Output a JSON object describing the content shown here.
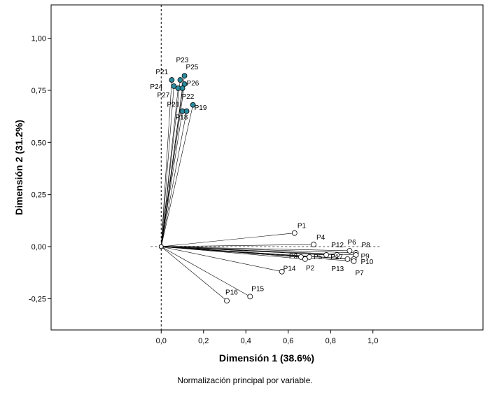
{
  "chart_data": {
    "type": "scatter",
    "title": "",
    "xlabel": "Dimensión 1  (38.6%)",
    "ylabel": "Dimensión 2  (31.2%)",
    "footnote": "Normalización principal por variable.",
    "xlim": [
      -0.52,
      1.52
    ],
    "ylim": [
      -0.4,
      1.16
    ],
    "xticks": [
      0.0,
      0.2,
      0.4,
      0.6,
      0.8,
      1.0
    ],
    "xtick_labels": [
      "0,0",
      "0,2",
      "0,4",
      "0,6",
      "0,8",
      "1,0"
    ],
    "yticks": [
      -0.25,
      0.0,
      0.25,
      0.5,
      0.75,
      1.0
    ],
    "ytick_labels": [
      "-0,25",
      "0,00",
      "0,25",
      "0,50",
      "0,75",
      "1,00"
    ],
    "reference_lines": {
      "x": 0,
      "y": 0,
      "style": "dashed"
    },
    "vectors_from_origin": true,
    "series": [
      {
        "name": "group1",
        "marker": "open-circle",
        "color": "#ffffff",
        "edge_color": "#000000",
        "points": [
          {
            "label": "P1",
            "x": 0.63,
            "y": 0.065
          },
          {
            "label": "P4",
            "x": 0.72,
            "y": 0.01
          },
          {
            "label": "P8",
            "x": 0.92,
            "y": -0.03
          },
          {
            "label": "P12",
            "x": 0.83,
            "y": -0.04
          },
          {
            "label": "P6",
            "x": 0.89,
            "y": -0.02
          },
          {
            "label": "P9",
            "x": 0.92,
            "y": -0.04
          },
          {
            "label": "P3",
            "x": 0.66,
            "y": -0.05
          },
          {
            "label": "P5",
            "x": 0.7,
            "y": -0.05
          },
          {
            "label": "P17",
            "x": 0.78,
            "y": -0.04
          },
          {
            "label": "P10",
            "x": 0.91,
            "y": -0.06
          },
          {
            "label": "P2",
            "x": 0.68,
            "y": -0.06
          },
          {
            "label": "P13",
            "x": 0.88,
            "y": -0.06
          },
          {
            "label": "P7",
            "x": 0.91,
            "y": -0.07
          },
          {
            "label": "P14",
            "x": 0.57,
            "y": -0.12
          },
          {
            "label": "P15",
            "x": 0.42,
            "y": -0.24
          },
          {
            "label": "P16",
            "x": 0.31,
            "y": -0.26
          }
        ]
      },
      {
        "name": "group2",
        "marker": "filled-circle",
        "color": "#2a8a9e",
        "edge_color": "#000000",
        "points": [
          {
            "label": "P23",
            "x": 0.09,
            "y": 0.8
          },
          {
            "label": "P25",
            "x": 0.11,
            "y": 0.82
          },
          {
            "label": "P21",
            "x": 0.05,
            "y": 0.8
          },
          {
            "label": "P24",
            "x": 0.06,
            "y": 0.77
          },
          {
            "label": "P26",
            "x": 0.11,
            "y": 0.78
          },
          {
            "label": "P27",
            "x": 0.08,
            "y": 0.76
          },
          {
            "label": "P22",
            "x": 0.1,
            "y": 0.76
          },
          {
            "label": "P20",
            "x": 0.1,
            "y": 0.65
          },
          {
            "label": "P18",
            "x": 0.12,
            "y": 0.65
          },
          {
            "label": "P19",
            "x": 0.15,
            "y": 0.68
          }
        ]
      }
    ]
  }
}
